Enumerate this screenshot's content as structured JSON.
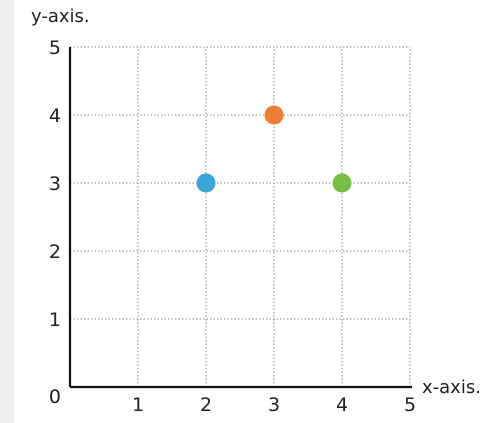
{
  "chart_data": {
    "type": "scatter",
    "title": "",
    "xlabel": "x-axis.",
    "ylabel": "y-axis.",
    "xlim": [
      0,
      5
    ],
    "ylim": [
      0,
      5
    ],
    "x_ticks": [
      "1",
      "2",
      "3",
      "4",
      "5"
    ],
    "y_ticks": [
      "1",
      "2",
      "3",
      "4",
      "5"
    ],
    "origin_label": "0",
    "grid": true,
    "points": [
      {
        "x": 2,
        "y": 3,
        "color": "#3aa5d8"
      },
      {
        "x": 3,
        "y": 4,
        "color": "#ef7d33"
      },
      {
        "x": 4,
        "y": 3,
        "color": "#74c045"
      }
    ]
  }
}
